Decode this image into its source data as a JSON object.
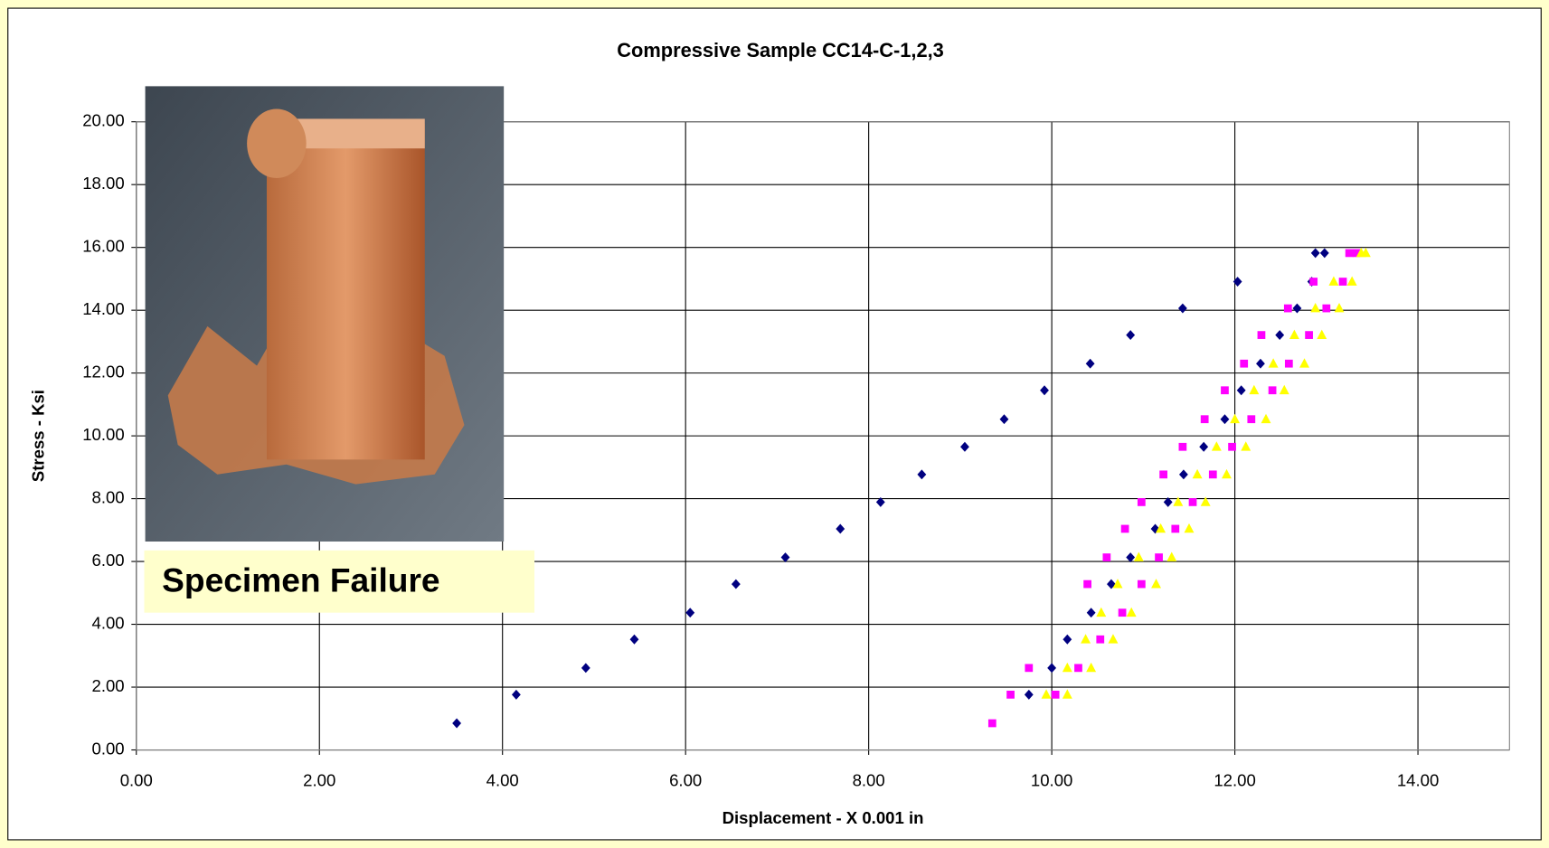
{
  "chart_data": {
    "type": "scatter",
    "title": "Compressive Sample CC14-C-1,2,3",
    "x_label": "Displacement - X 0.001 in",
    "y_label": "Stress - Ksi",
    "annotation": "Specimen Failure",
    "xlim": [
      0,
      15
    ],
    "ylim": [
      0,
      20
    ],
    "xticks": [
      {
        "value": 0,
        "label": "0.00"
      },
      {
        "value": 2,
        "label": "2.00"
      },
      {
        "value": 4,
        "label": "4.00"
      },
      {
        "value": 6,
        "label": "6.00"
      },
      {
        "value": 8,
        "label": "8.00"
      },
      {
        "value": 10,
        "label": "10.00"
      },
      {
        "value": 12,
        "label": "12.00"
      },
      {
        "value": 14,
        "label": "14.00"
      }
    ],
    "yticks": [
      {
        "value": 0,
        "label": "0.00"
      },
      {
        "value": 2,
        "label": "2.00"
      },
      {
        "value": 4,
        "label": "4.00"
      },
      {
        "value": 6,
        "label": "6.00"
      },
      {
        "value": 8,
        "label": "8.00"
      },
      {
        "value": 10,
        "label": "10.00"
      },
      {
        "value": 12,
        "label": "12.00"
      },
      {
        "value": 14,
        "label": "14.00"
      },
      {
        "value": 16,
        "label": "16.00"
      },
      {
        "value": 18,
        "label": "18.00"
      },
      {
        "value": 20,
        "label": "20.00"
      }
    ],
    "grid": true,
    "series": [
      {
        "color": "#000080",
        "marker": "diamond",
        "x": [
          3.5,
          4.15,
          4.91,
          5.44,
          6.05,
          6.55,
          7.09,
          7.69,
          8.13,
          8.58,
          9.05,
          9.48,
          9.92,
          10.42,
          10.86,
          11.43,
          12.03,
          12.88,
          9.75,
          10.0,
          10.17,
          10.43,
          10.65,
          10.86,
          11.13,
          11.27,
          11.44,
          11.66,
          11.89,
          12.07,
          12.28,
          12.49,
          12.68,
          12.84,
          12.98
        ],
        "values": [
          0.85,
          1.76,
          2.61,
          3.52,
          4.37,
          5.28,
          6.13,
          7.04,
          7.89,
          8.77,
          9.65,
          10.53,
          11.45,
          12.3,
          13.21,
          14.06,
          14.91,
          15.82,
          1.76,
          2.61,
          3.52,
          4.37,
          5.28,
          6.13,
          7.04,
          7.89,
          8.77,
          9.65,
          10.53,
          11.45,
          12.3,
          13.21,
          14.06,
          14.91,
          15.82
        ]
      },
      {
        "color": "#ff00ff",
        "marker": "square",
        "x": [
          9.35,
          9.55,
          10.04,
          9.75,
          10.29,
          10.53,
          10.77,
          10.39,
          10.98,
          10.6,
          11.17,
          10.8,
          11.35,
          10.98,
          11.54,
          11.22,
          11.76,
          11.43,
          11.97,
          11.67,
          12.18,
          11.89,
          12.41,
          12.1,
          12.59,
          12.29,
          12.81,
          12.58,
          13.0,
          12.86,
          13.18,
          13.25,
          13.33
        ],
        "values": [
          0.85,
          1.76,
          1.76,
          2.61,
          2.61,
          3.52,
          4.37,
          5.28,
          5.28,
          6.13,
          6.13,
          7.04,
          7.04,
          7.89,
          7.89,
          8.77,
          8.77,
          9.65,
          9.65,
          10.53,
          10.53,
          11.45,
          11.45,
          12.3,
          12.3,
          13.21,
          13.21,
          14.06,
          14.06,
          14.91,
          14.91,
          15.82,
          15.82
        ]
      },
      {
        "color": "#ffff00",
        "marker": "triangle",
        "x": [
          9.94,
          10.17,
          10.17,
          10.43,
          10.37,
          10.67,
          10.54,
          10.87,
          10.72,
          11.14,
          10.95,
          11.31,
          11.19,
          11.5,
          11.38,
          11.68,
          11.59,
          11.91,
          11.8,
          12.12,
          12.0,
          12.34,
          12.21,
          12.54,
          12.42,
          12.76,
          12.65,
          12.95,
          12.88,
          13.14,
          13.08,
          13.28,
          13.38,
          13.43
        ],
        "values": [
          1.76,
          1.76,
          2.61,
          2.61,
          3.52,
          3.52,
          4.37,
          4.37,
          5.28,
          5.28,
          6.13,
          6.13,
          7.04,
          7.04,
          7.89,
          7.89,
          8.77,
          8.77,
          9.65,
          9.65,
          10.53,
          10.53,
          11.45,
          11.45,
          12.3,
          12.3,
          13.21,
          13.21,
          14.06,
          14.06,
          14.91,
          14.91,
          15.82,
          15.82
        ]
      }
    ]
  }
}
